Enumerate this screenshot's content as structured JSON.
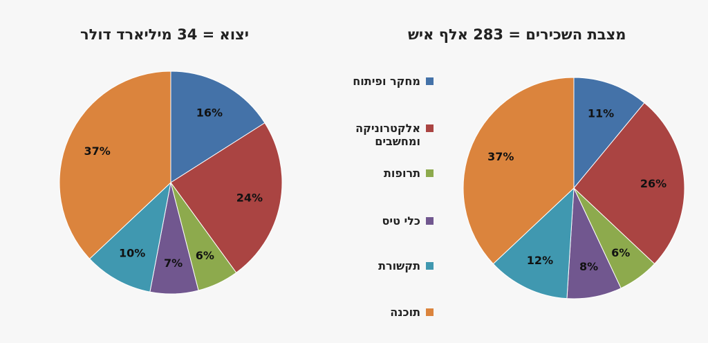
{
  "chart_data": [
    {
      "type": "pie",
      "title": "יצוא = 34 מיליארד דולר",
      "categories": [
        "מחקר ופיתוח",
        "אלקטרוניקה ומחשבים",
        "תרופות",
        "כלי טיס",
        "תקשורת",
        "תוכנה"
      ],
      "values": [
        16,
        24,
        6,
        7,
        10,
        37
      ],
      "labels": [
        "16%",
        "24%",
        "6%",
        "7%",
        "10%",
        "37%"
      ],
      "colors": [
        "#4472a8",
        "#aa4442",
        "#8daa4d",
        "#71578f",
        "#4098b0",
        "#db843d"
      ]
    },
    {
      "type": "pie",
      "title": "מצבת השכירים = 283 אלף איש",
      "categories": [
        "מחקר ופיתוח",
        "אלקטרוניקה ומחשבים",
        "תרופות",
        "כלי טיס",
        "תקשורת",
        "תוכנה"
      ],
      "values": [
        11,
        26,
        6,
        8,
        12,
        37
      ],
      "labels": [
        "11%",
        "26%",
        "6%",
        "8%",
        "12%",
        "37%"
      ],
      "colors": [
        "#4472a8",
        "#aa4442",
        "#8daa4d",
        "#71578f",
        "#4098b0",
        "#db843d"
      ]
    }
  ],
  "legend": {
    "position": "center",
    "items": [
      {
        "label": "מחקר ופיתוח",
        "color": "#4472a8"
      },
      {
        "label": "אלקטרוניקה\nומחשבים",
        "color": "#aa4442"
      },
      {
        "label": "תרופות",
        "color": "#8daa4d"
      },
      {
        "label": "כלי טיס",
        "color": "#71578f"
      },
      {
        "label": "תקשורת",
        "color": "#4098b0"
      },
      {
        "label": "תוכנה",
        "color": "#db843d"
      }
    ]
  }
}
